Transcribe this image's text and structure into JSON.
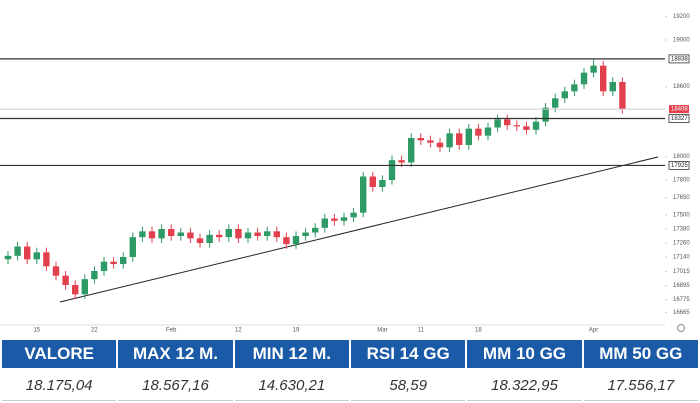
{
  "chart_data": {
    "type": "candlestick",
    "categories": [
      null,
      null,
      null,
      "15",
      null,
      null,
      null,
      null,
      null,
      "22",
      null,
      null,
      null,
      null,
      null,
      null,
      null,
      "Feb",
      null,
      null,
      null,
      null,
      null,
      null,
      "12",
      null,
      null,
      null,
      null,
      null,
      "19",
      null,
      null,
      null,
      null,
      null,
      null,
      null,
      null,
      "Mar",
      null,
      null,
      null,
      "11",
      null,
      null,
      null,
      null,
      null,
      "18",
      null,
      null,
      null,
      null,
      null,
      null,
      null,
      null,
      null,
      null,
      null,
      "Apr",
      null,
      null,
      null
    ],
    "open": [
      17120,
      17150,
      17230,
      17120,
      17180,
      17060,
      16980,
      16900,
      16820,
      16950,
      17020,
      17100,
      17080,
      17140,
      17310,
      17360,
      17300,
      17380,
      17320,
      17350,
      17300,
      17260,
      17330,
      17310,
      17380,
      17300,
      17350,
      17320,
      17360,
      17310,
      17250,
      17320,
      17350,
      17390,
      17470,
      17450,
      17480,
      17520,
      17830,
      17740,
      17800,
      17970,
      17950,
      18160,
      18140,
      18120,
      18080,
      18200,
      18100,
      18240,
      18180,
      18250,
      18320,
      18270,
      18260,
      18230,
      18300,
      18420,
      18500,
      18560,
      18620,
      18720,
      18780,
      18560,
      18640
    ],
    "high": [
      17190,
      17270,
      17270,
      17220,
      17220,
      17100,
      17020,
      16940,
      16990,
      17060,
      17140,
      17140,
      17180,
      17350,
      17400,
      17400,
      17420,
      17420,
      17390,
      17390,
      17340,
      17370,
      17370,
      17420,
      17420,
      17390,
      17390,
      17400,
      17400,
      17350,
      17360,
      17390,
      17430,
      17510,
      17510,
      17520,
      17560,
      17870,
      17870,
      17840,
      18010,
      18010,
      18200,
      18200,
      18180,
      18160,
      18240,
      18240,
      18280,
      18280,
      18290,
      18360,
      18360,
      18310,
      18300,
      18340,
      18460,
      18540,
      18600,
      18660,
      18760,
      18840,
      18820,
      18680,
      18680
    ],
    "low": [
      17080,
      17110,
      17080,
      17080,
      17020,
      16940,
      16860,
      16780,
      16780,
      16910,
      16980,
      17040,
      17040,
      17100,
      17270,
      17260,
      17260,
      17280,
      17280,
      17260,
      17220,
      17220,
      17270,
      17270,
      17260,
      17260,
      17280,
      17280,
      17270,
      17210,
      17210,
      17280,
      17310,
      17350,
      17410,
      17410,
      17440,
      17480,
      17700,
      17700,
      17760,
      17910,
      17910,
      18100,
      18080,
      18040,
      18040,
      18060,
      18060,
      18140,
      18140,
      18210,
      18230,
      18220,
      18190,
      18190,
      18260,
      18380,
      18460,
      18520,
      18580,
      18680,
      18520,
      18520,
      18370
    ],
    "close": [
      17150,
      17230,
      17120,
      17180,
      17060,
      16980,
      16900,
      16820,
      16950,
      17020,
      17100,
      17080,
      17140,
      17310,
      17360,
      17300,
      17380,
      17320,
      17350,
      17300,
      17260,
      17330,
      17310,
      17380,
      17300,
      17350,
      17320,
      17360,
      17310,
      17250,
      17320,
      17350,
      17390,
      17470,
      17450,
      17480,
      17520,
      17830,
      17740,
      17800,
      17970,
      17950,
      18160,
      18140,
      18120,
      18080,
      18200,
      18100,
      18240,
      18180,
      18250,
      18320,
      18270,
      18260,
      18230,
      18300,
      18420,
      18500,
      18560,
      18620,
      18720,
      18780,
      18560,
      18640,
      18408
    ],
    "up_color": "#2e9a66",
    "down_color": "#e2404c",
    "ylim": [
      16600,
      19300
    ],
    "yticks": [
      16665,
      16775,
      16895,
      17015,
      17140,
      17260,
      17380,
      17500,
      17650,
      17800,
      18000,
      18600,
      19000,
      19200
    ],
    "levels": [
      18838,
      18327,
      17925
    ],
    "last_price": 18408
  },
  "table": {
    "header": [
      "VALORE",
      "MAX 12 M.",
      "MIN 12 M.",
      "RSI 14 GG",
      "MM 10 GG",
      "MM 50 GG"
    ],
    "row": [
      "18.175,04",
      "18.567,16",
      "14.630,21",
      "58,59",
      "18.322,95",
      "17.556,17"
    ]
  }
}
